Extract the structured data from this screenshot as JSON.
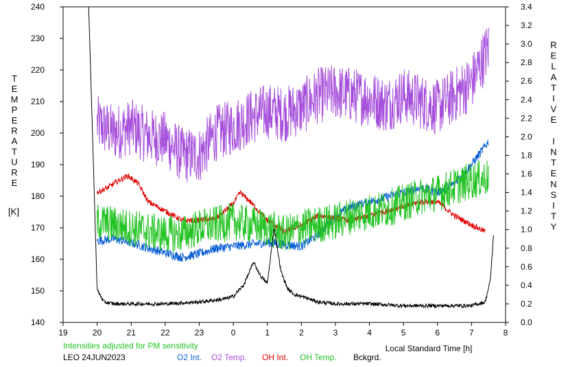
{
  "chart_data": {
    "type": "line",
    "title": "",
    "xlabel": "Local Standard Time [h]",
    "ylabel_left_letters": [
      "T",
      "E",
      "M",
      "P",
      "E",
      "R",
      "A",
      "T",
      "U",
      "R",
      "E"
    ],
    "ylabel_left_unit": "[K]",
    "ylabel_right_letters": [
      "R",
      "E",
      "L",
      "A",
      "T",
      "I",
      "V",
      "E",
      "",
      "I",
      "N",
      "T",
      "E",
      "N",
      "S",
      "I",
      "T",
      "Y"
    ],
    "xlim": [
      19,
      32
    ],
    "ylim_left": [
      140,
      240
    ],
    "ylim_right": [
      0,
      3.4
    ],
    "x_ticks": [
      "19",
      "20",
      "21",
      "22",
      "23",
      "0",
      "1",
      "2",
      "3",
      "4",
      "5",
      "6",
      "7",
      "8"
    ],
    "y_left_ticks": [
      "140",
      "150",
      "160",
      "170",
      "180",
      "190",
      "200",
      "210",
      "220",
      "230",
      "240"
    ],
    "y_right_ticks": [
      "0.0",
      "0.2",
      "0.4",
      "0.6",
      "0.8",
      "1.0",
      "1.2",
      "1.4",
      "1.6",
      "1.8",
      "2.0",
      "2.2",
      "2.4",
      "2.6",
      "2.8",
      "3.0",
      "3.2",
      "3.4"
    ],
    "grid": false,
    "note": "Intensities adjusted for PM sensitivity",
    "station": "LEO 24JUN2023",
    "legend": [
      {
        "label": "O2 Int.",
        "color": "#0a5fd6"
      },
      {
        "label": "O2 Temp.",
        "color": "#a64fdb"
      },
      {
        "label": "OH Int.",
        "color": "#e00000"
      },
      {
        "label": "OH Temp.",
        "color": "#22c322"
      },
      {
        "label": "Bckgrd.",
        "color": "#000000"
      }
    ],
    "series": [
      {
        "name": "O2 Temp.",
        "axis": "left",
        "color": "#a64fdb",
        "x": [
          20.0,
          20.5,
          21.0,
          21.5,
          22.0,
          22.5,
          23.0,
          23.5,
          24.0,
          24.5,
          25.0,
          25.5,
          26.0,
          26.5,
          27.0,
          27.5,
          28.0,
          28.5,
          29.0,
          29.5,
          30.0,
          30.5,
          31.0,
          31.5
        ],
        "y": [
          203,
          200,
          202,
          199,
          198,
          193,
          193,
          200,
          202,
          205,
          207,
          206,
          208,
          212,
          213,
          212,
          211,
          209,
          212,
          210,
          208,
          212,
          216,
          227
        ],
        "noise": 9
      },
      {
        "name": "O2 Int.",
        "axis": "right",
        "color": "#0a5fd6",
        "x": [
          20.0,
          20.5,
          21.0,
          21.5,
          22.0,
          22.5,
          23.0,
          23.5,
          24.0,
          24.5,
          25.0,
          25.5,
          26.0,
          26.5,
          27.0,
          27.5,
          28.0,
          28.5,
          29.0,
          29.5,
          30.0,
          30.5,
          31.0,
          31.5
        ],
        "y": [
          0.88,
          0.9,
          0.86,
          0.8,
          0.75,
          0.7,
          0.74,
          0.8,
          0.82,
          0.84,
          0.86,
          0.84,
          0.82,
          0.95,
          1.15,
          1.25,
          1.3,
          1.35,
          1.4,
          1.45,
          1.4,
          1.5,
          1.7,
          1.95
        ],
        "noise": 0.05
      },
      {
        "name": "OH Int.",
        "axis": "right",
        "color": "#e00000",
        "x": [
          20.0,
          20.3,
          20.6,
          20.9,
          21.2,
          21.5,
          22.0,
          22.5,
          23.0,
          23.5,
          24.0,
          24.2,
          24.5,
          25.0,
          25.5,
          26.0,
          26.5,
          27.0,
          27.5,
          28.0,
          28.5,
          29.0,
          29.5,
          30.0,
          30.5,
          31.0,
          31.4
        ],
        "y": [
          1.4,
          1.45,
          1.52,
          1.58,
          1.5,
          1.3,
          1.2,
          1.1,
          1.1,
          1.12,
          1.28,
          1.4,
          1.3,
          1.1,
          0.98,
          1.05,
          1.15,
          1.12,
          1.1,
          1.15,
          1.2,
          1.25,
          1.3,
          1.3,
          1.15,
          1.05,
          0.98
        ],
        "noise": 0.03
      },
      {
        "name": "OH Temp.",
        "axis": "left",
        "color": "#22c322",
        "x": [
          20.0,
          20.5,
          21.0,
          21.5,
          22.0,
          22.5,
          23.0,
          23.5,
          24.0,
          24.5,
          25.0,
          25.5,
          26.0,
          26.5,
          27.0,
          27.5,
          28.0,
          28.5,
          29.0,
          29.5,
          30.0,
          30.5,
          31.0,
          31.5
        ],
        "y": [
          172,
          171,
          170,
          169,
          168,
          168,
          170,
          171,
          172,
          171,
          170,
          168,
          170,
          171,
          172,
          174,
          175,
          176,
          178,
          180,
          181,
          183,
          185,
          186
        ],
        "noise": 6
      },
      {
        "name": "Bckgrd.",
        "axis": "right",
        "color": "#000000",
        "x": [
          19.75,
          19.85,
          20.0,
          20.2,
          20.5,
          21.0,
          22.0,
          23.0,
          23.7,
          24.0,
          24.3,
          24.6,
          24.8,
          25.0,
          25.2,
          25.4,
          25.6,
          25.8,
          26.0,
          26.5,
          27.0,
          28.0,
          29.0,
          30.0,
          31.0,
          31.4,
          31.55,
          31.65
        ],
        "y": [
          3.4,
          2.2,
          0.35,
          0.22,
          0.2,
          0.2,
          0.2,
          0.22,
          0.25,
          0.28,
          0.4,
          0.65,
          0.5,
          0.42,
          1.02,
          0.55,
          0.36,
          0.3,
          0.28,
          0.22,
          0.2,
          0.2,
          0.18,
          0.18,
          0.18,
          0.22,
          0.45,
          0.95
        ],
        "noise": 0.02
      }
    ]
  }
}
